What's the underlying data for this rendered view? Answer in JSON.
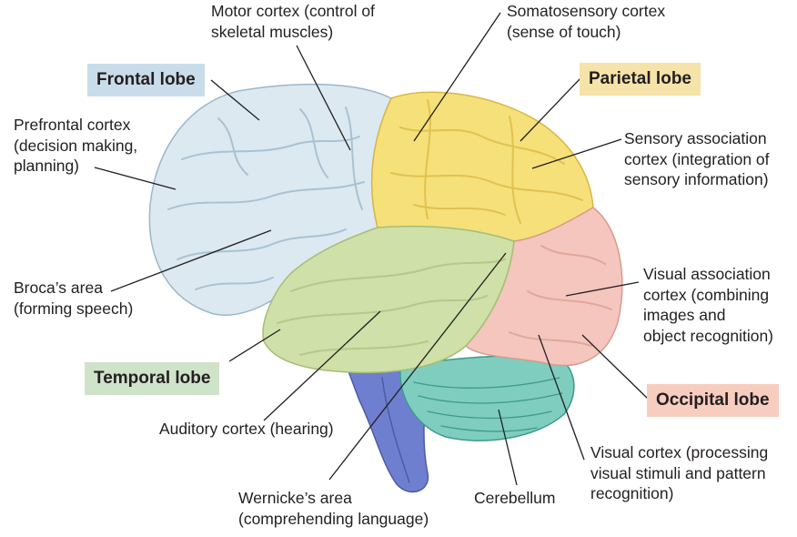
{
  "lobes": {
    "frontal": "Frontal lobe",
    "parietal": "Parietal lobe",
    "temporal": "Temporal lobe",
    "occipital": "Occipital lobe"
  },
  "labels": {
    "motor": "Motor cortex (control of\nskeletal muscles)",
    "somatosensory": "Somatosensory cortex\n(sense of touch)",
    "prefrontal": "Prefrontal cortex\n(decision making,\nplanning)",
    "sensory_assoc": "Sensory association\ncortex (integration of\nsensory information)",
    "broca": "Broca’s area\n(forming speech)",
    "visual_assoc": "Visual association\ncortex (combining\nimages and\nobject recognition)",
    "auditory": "Auditory cortex (hearing)",
    "visual_cortex": "Visual cortex (processing\nvisual stimuli and pattern\nrecognition)",
    "wernicke": "Wernicke’s area\n(comprehending language)",
    "cerebellum": "Cerebellum"
  },
  "colors": {
    "frontal_box": "#c9dce9",
    "parietal_box": "#f6e3a9",
    "temporal_box": "#cfe3c9",
    "occipital_box": "#f7cdbf",
    "frontal_fill": "#dce9f1",
    "parietal_fill": "#f6e07a",
    "temporal_fill": "#cfe0a8",
    "occipital_fill": "#f4c6bd",
    "cerebellum_fill": "#7fcdbe",
    "brainstem_fill": "#6f7fd0"
  }
}
